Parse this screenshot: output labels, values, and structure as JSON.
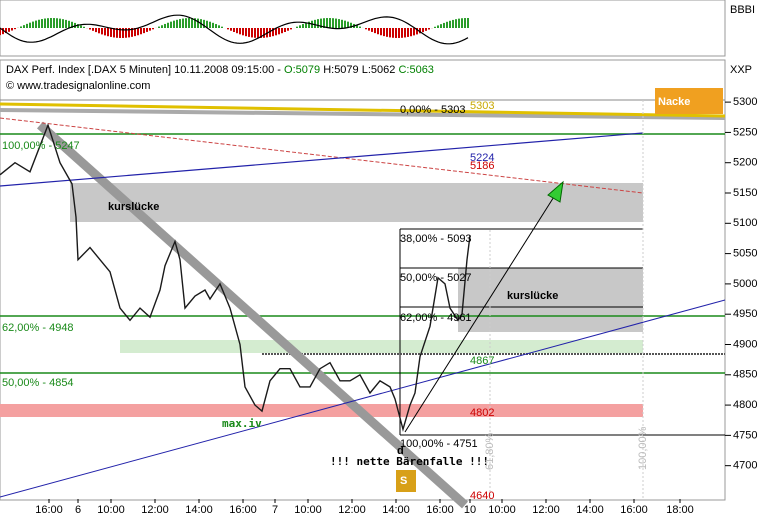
{
  "chart_data": {
    "type": "line",
    "header": {
      "symbol": "DAX Perf. Index [.DAX  5 Minuten] 10.11.2008 09:15:00 -",
      "open": "O:5079",
      "high": "H:5079",
      "low": "L:5062",
      "close": "C:5063",
      "source": "© www.tradesignalonline.com",
      "axis_label": "XXP",
      "indicator_label": "BBBI"
    },
    "color": "#1a1a1a",
    "x": [
      0,
      15,
      30,
      48,
      60,
      72,
      76,
      78,
      90,
      100,
      110,
      120,
      130,
      140,
      150,
      160,
      165,
      175,
      180,
      185,
      195,
      205,
      210,
      220,
      230,
      240,
      245,
      255,
      262,
      270,
      280,
      290,
      300,
      310,
      320,
      330,
      340,
      350,
      360,
      370,
      380,
      390,
      395,
      403,
      410,
      415,
      420,
      430,
      438,
      445,
      450,
      458,
      462,
      467,
      470
    ],
    "values": [
      5180,
      5200,
      5185,
      5262,
      5200,
      5165,
      5110,
      5040,
      5060,
      5040,
      5020,
      4960,
      4940,
      4960,
      4945,
      4990,
      5030,
      5070,
      5040,
      4960,
      4980,
      4990,
      4975,
      5000,
      4960,
      4900,
      4830,
      4800,
      4790,
      4840,
      4860,
      4860,
      4830,
      4830,
      4860,
      4870,
      4840,
      4840,
      4850,
      4820,
      4840,
      4830,
      4810,
      4760,
      4800,
      4820,
      4880,
      4930,
      5010,
      5000,
      4960,
      4940,
      4950,
      5040,
      5080
    ],
    "xlim": [
      0,
      725
    ],
    "xticks": [
      {
        "value": 49,
        "label": "16:00"
      },
      {
        "value": 78,
        "label": "6"
      },
      {
        "value": 111,
        "label": "10:00"
      },
      {
        "value": 155,
        "label": "12:00"
      },
      {
        "value": 199,
        "label": "14:00"
      },
      {
        "value": 243,
        "label": "16:00"
      },
      {
        "value": 275,
        "label": "7"
      },
      {
        "value": 308,
        "label": "10:00"
      },
      {
        "value": 352,
        "label": "12:00"
      },
      {
        "value": 396,
        "label": "14:00"
      },
      {
        "value": 440,
        "label": "16:00"
      },
      {
        "value": 470,
        "label": "10"
      },
      {
        "value": 502,
        "label": "10:00"
      },
      {
        "value": 546,
        "label": "12:00"
      },
      {
        "value": 590,
        "label": "14:00"
      },
      {
        "value": 634,
        "label": "16:00"
      },
      {
        "value": 680,
        "label": "18:00"
      }
    ],
    "ylim": [
      4645,
      5320
    ],
    "yticks": [
      4700,
      4750,
      4800,
      4850,
      4900,
      4950,
      5000,
      5050,
      5100,
      5150,
      5200,
      5250,
      5300
    ],
    "annotations": [
      "0,00% - 5303",
      "5303",
      "Nacke",
      "100,00% - 5247",
      "5224",
      "5186",
      "kurslücke",
      "38,00% - 5093",
      "50,00% - 5027",
      "kurslücke",
      "62,00% - 4961",
      "62,00% - 4948",
      "4867",
      "50,00% - 4854",
      "4802",
      "max.iv",
      "100,00% - 4751",
      "d",
      "!!! nette Bärenfalle !!!",
      "S",
      "4640",
      "61,80%",
      "100,00%"
    ]
  }
}
